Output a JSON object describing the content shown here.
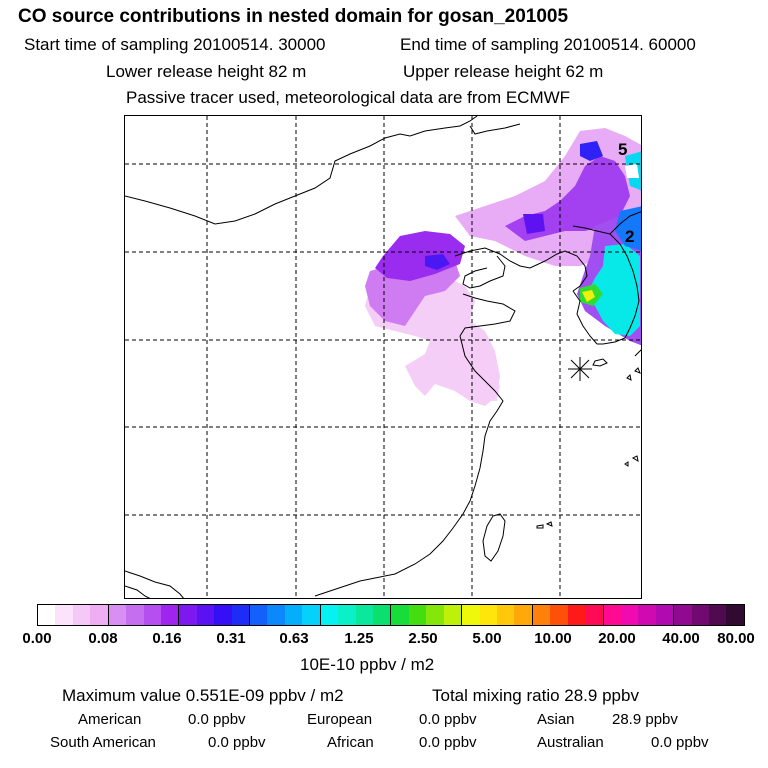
{
  "header": {
    "title": "CO  source contributions in nested domain for gosan_201005",
    "start_time": "Start time of sampling 20100514. 30000",
    "end_time": "End time of sampling 20100514. 60000",
    "lower_release": "Lower release height   82 m",
    "upper_release": "Upper release height   62 m",
    "tracer_note": "Passive tracer used, meteorological data are from ECMWF"
  },
  "map": {
    "contour_labels": [
      "5",
      "2"
    ],
    "receptor_marker": "receptor-star"
  },
  "colorbar": {
    "colors": [
      "#ffffff",
      "#fbe3fb",
      "#f5c9f7",
      "#efaef3",
      "#d98ef1",
      "#c56ef0",
      "#b54ff0",
      "#9f25ee",
      "#7d18f0",
      "#5a12f2",
      "#3510f6",
      "#1e2cf8",
      "#1460fa",
      "#0b88fb",
      "#05aefb",
      "#05d2fb",
      "#06f2f2",
      "#0af0c8",
      "#0ae89e",
      "#0ae070",
      "#18dc3a",
      "#44de10",
      "#84e60a",
      "#bef00a",
      "#eef80a",
      "#ffe60a",
      "#ffc80a",
      "#ffa80a",
      "#ff800a",
      "#ff500a",
      "#ff1a1a",
      "#ff0a55",
      "#ff0a90",
      "#f00ab0",
      "#d00ab0",
      "#b00ab0",
      "#900a90",
      "#700a70",
      "#500a50",
      "#300a30"
    ],
    "tick_labels": [
      "0.00",
      "0.08",
      "0.16",
      "0.31",
      "0.63",
      "1.25",
      "2.50",
      "5.00",
      "10.00",
      "20.00",
      "40.00",
      "80.00"
    ],
    "unit": "10E-10 ppbv / m2"
  },
  "summary": {
    "max_value": "Maximum value  0.551E-09 ppbv / m2",
    "total_mixing": "Total mixing ratio       28.9 ppbv"
  },
  "regions": [
    {
      "name": "American",
      "value": "0.0 ppbv"
    },
    {
      "name": "European",
      "value": "0.0 ppbv"
    },
    {
      "name": "Asian",
      "value": "28.9 ppbv"
    },
    {
      "name": "South American",
      "value": "0.0 ppbv"
    },
    {
      "name": "African",
      "value": "0.0 ppbv"
    },
    {
      "name": "Australian",
      "value": "0.0 ppbv"
    }
  ]
}
